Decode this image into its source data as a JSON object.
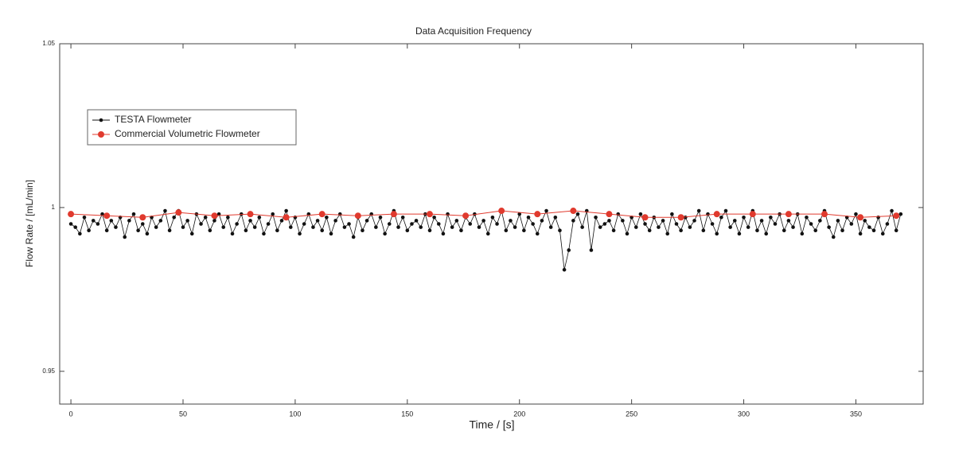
{
  "chart_data": {
    "type": "line",
    "title": "Data Acquisition Frequency",
    "x_label": "Time / [s]",
    "y_label": "Flow Rate / [mL/min]",
    "xlim": [
      -5,
      380
    ],
    "ylim": [
      0.94,
      1.05
    ],
    "xticks": [
      0,
      50,
      100,
      150,
      200,
      250,
      300,
      350
    ],
    "yticks": [
      0.95,
      1,
      1.05
    ],
    "legend": "upper left",
    "series": [
      {
        "name": "TESTA Flowmeter",
        "color": "#111111",
        "x": [
          0,
          2,
          4,
          6,
          8,
          10,
          12,
          14,
          16,
          18,
          20,
          22,
          24,
          26,
          28,
          30,
          32,
          34,
          36,
          38,
          40,
          42,
          44,
          46,
          48,
          50,
          52,
          54,
          56,
          58,
          60,
          62,
          64,
          66,
          68,
          70,
          72,
          74,
          76,
          78,
          80,
          82,
          84,
          86,
          88,
          90,
          92,
          94,
          96,
          98,
          100,
          102,
          104,
          106,
          108,
          110,
          112,
          114,
          116,
          118,
          120,
          122,
          124,
          126,
          128,
          130,
          132,
          134,
          136,
          138,
          140,
          142,
          144,
          146,
          148,
          150,
          152,
          154,
          156,
          158,
          160,
          162,
          164,
          166,
          168,
          170,
          172,
          174,
          176,
          178,
          180,
          182,
          184,
          186,
          188,
          190,
          192,
          194,
          196,
          198,
          200,
          202,
          204,
          206,
          208,
          210,
          212,
          214,
          216,
          218,
          220,
          222,
          224,
          226,
          228,
          230,
          232,
          234,
          236,
          238,
          240,
          242,
          244,
          246,
          248,
          250,
          252,
          254,
          256,
          258,
          260,
          262,
          264,
          266,
          268,
          270,
          272,
          274,
          276,
          278,
          280,
          282,
          284,
          286,
          288,
          290,
          292,
          294,
          296,
          298,
          300,
          302,
          304,
          306,
          308,
          310,
          312,
          314,
          316,
          318,
          320,
          322,
          324,
          326,
          328,
          330,
          332,
          334,
          336,
          338,
          340,
          342,
          344,
          346,
          348,
          350,
          352,
          354,
          356,
          358,
          360,
          362,
          364,
          366,
          368,
          370
        ],
        "values": [
          0.995,
          0.994,
          0.992,
          0.997,
          0.993,
          0.996,
          0.995,
          0.998,
          0.993,
          0.996,
          0.994,
          0.997,
          0.991,
          0.996,
          0.998,
          0.993,
          0.995,
          0.992,
          0.997,
          0.994,
          0.996,
          0.999,
          0.993,
          0.997,
          0.999,
          0.994,
          0.996,
          0.992,
          0.998,
          0.995,
          0.997,
          0.993,
          0.996,
          0.998,
          0.994,
          0.997,
          0.992,
          0.995,
          0.998,
          0.993,
          0.996,
          0.994,
          0.997,
          0.992,
          0.995,
          0.998,
          0.993,
          0.996,
          0.999,
          0.994,
          0.997,
          0.992,
          0.995,
          0.998,
          0.994,
          0.996,
          0.993,
          0.997,
          0.992,
          0.996,
          0.998,
          0.994,
          0.995,
          0.991,
          0.997,
          0.993,
          0.996,
          0.998,
          0.994,
          0.997,
          0.992,
          0.995,
          0.999,
          0.994,
          0.997,
          0.993,
          0.995,
          0.996,
          0.994,
          0.998,
          0.993,
          0.997,
          0.995,
          0.992,
          0.998,
          0.994,
          0.996,
          0.993,
          0.997,
          0.995,
          0.998,
          0.994,
          0.996,
          0.992,
          0.997,
          0.995,
          0.999,
          0.993,
          0.996,
          0.994,
          0.998,
          0.993,
          0.997,
          0.995,
          0.992,
          0.996,
          0.999,
          0.994,
          0.997,
          0.993,
          0.981,
          0.987,
          0.996,
          0.998,
          0.994,
          0.999,
          0.987,
          0.997,
          0.994,
          0.995,
          0.996,
          0.993,
          0.998,
          0.996,
          0.992,
          0.997,
          0.994,
          0.998,
          0.995,
          0.993,
          0.997,
          0.994,
          0.996,
          0.992,
          0.998,
          0.995,
          0.993,
          0.997,
          0.994,
          0.996,
          0.999,
          0.993,
          0.998,
          0.995,
          0.992,
          0.997,
          0.999,
          0.994,
          0.996,
          0.992,
          0.997,
          0.994,
          0.999,
          0.993,
          0.996,
          0.992,
          0.997,
          0.995,
          0.998,
          0.993,
          0.996,
          0.994,
          0.998,
          0.992,
          0.997,
          0.995,
          0.993,
          0.996,
          0.999,
          0.994,
          0.991,
          0.996,
          0.993,
          0.997,
          0.995,
          0.998,
          0.992,
          0.996,
          0.994,
          0.993,
          0.997,
          0.992,
          0.995,
          0.999,
          0.993,
          0.998
        ]
      },
      {
        "name": "Commercial Volumetric Flowmeter",
        "color": "#e03a2e",
        "x": [
          0,
          16,
          32,
          48,
          64,
          80,
          96,
          112,
          128,
          144,
          160,
          176,
          192,
          208,
          224,
          240,
          256,
          272,
          288,
          304,
          320,
          336,
          352,
          368
        ],
        "values": [
          0.998,
          0.9975,
          0.997,
          0.9985,
          0.9975,
          0.998,
          0.997,
          0.998,
          0.9975,
          0.998,
          0.998,
          0.9975,
          0.999,
          0.998,
          0.999,
          0.998,
          0.997,
          0.997,
          0.998,
          0.998,
          0.998,
          0.998,
          0.997,
          0.9975
        ]
      }
    ]
  }
}
